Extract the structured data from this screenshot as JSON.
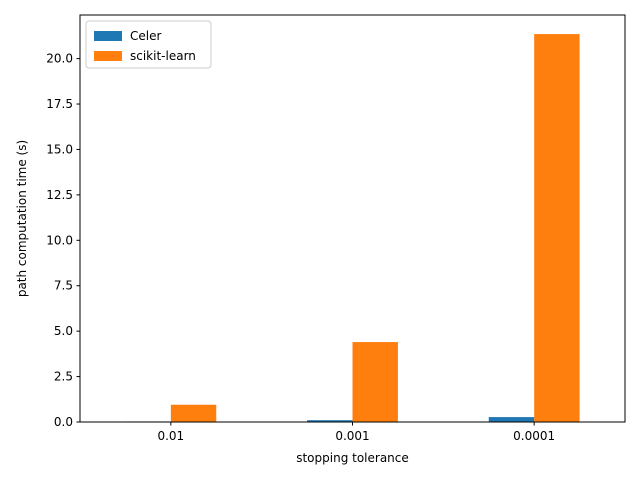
{
  "chart_data": {
    "type": "bar",
    "title": "",
    "xlabel": "stopping tolerance",
    "ylabel": "path computation time (s)",
    "categories": [
      "0.01",
      "0.001",
      "0.0001"
    ],
    "series": [
      {
        "name": "Celer",
        "color": "#1f77b4",
        "values": [
          0.03,
          0.1,
          0.27
        ]
      },
      {
        "name": "scikit-learn",
        "color": "#ff7f0e",
        "values": [
          0.95,
          4.4,
          21.35
        ]
      }
    ],
    "ylim": [
      0,
      22.4
    ],
    "yticks": [
      "0.0",
      "2.5",
      "5.0",
      "7.5",
      "10.0",
      "12.5",
      "15.0",
      "17.5",
      "20.0"
    ],
    "grid": false,
    "legend_position": "top-left"
  }
}
